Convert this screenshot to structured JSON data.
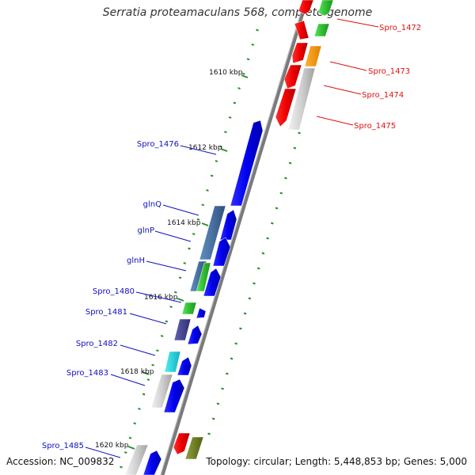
{
  "title": "Serratia proteamaculans 568, complete genome",
  "accession": "Accession: NC_009832",
  "summary": "Topology: circular; Length: 5,448,853 bp; Genes: 5,000",
  "colors": {
    "backbone": "#808080",
    "tick": "#2e8b2e",
    "left_label": "#1010c0",
    "right_label": "#e01010"
  },
  "scale_labels": [
    "1610 kbp",
    "1612 kbp",
    "1614 kbp",
    "1616 kbp",
    "1618 kbp",
    "1620 kbp"
  ],
  "left_labels": [
    "Spro_1476",
    "glnQ",
    "glnP",
    "glnH",
    "Spro_1480",
    "Spro_1481",
    "Spro_1482",
    "Spro_1483",
    "Spro_1485"
  ],
  "right_labels": [
    "Spro_1472",
    "Spro_1473",
    "Spro_1474",
    "Spro_1475"
  ]
}
